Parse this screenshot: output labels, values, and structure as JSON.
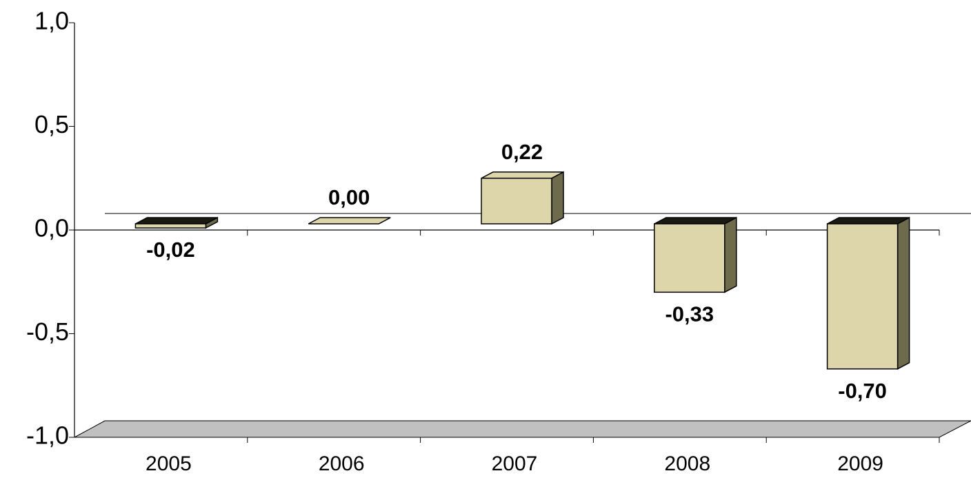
{
  "chart_data": {
    "type": "bar",
    "categories": [
      "2005",
      "2006",
      "2007",
      "2008",
      "2009"
    ],
    "values": [
      -0.02,
      0.0,
      0.22,
      -0.33,
      -0.7
    ],
    "value_labels": [
      "-0,02",
      "0,00",
      "0,22",
      "-0,33",
      "-0,70"
    ],
    "color": "#ddd6aa",
    "ylim": [
      -1,
      1
    ],
    "yticks": [
      {
        "value": 1,
        "label": "1,0"
      },
      {
        "value": 0.5,
        "label": "0,5"
      },
      {
        "value": 0,
        "label": "0,0"
      },
      {
        "value": -0.5,
        "label": "-0,5"
      },
      {
        "value": -1,
        "label": "-1,0"
      }
    ]
  }
}
